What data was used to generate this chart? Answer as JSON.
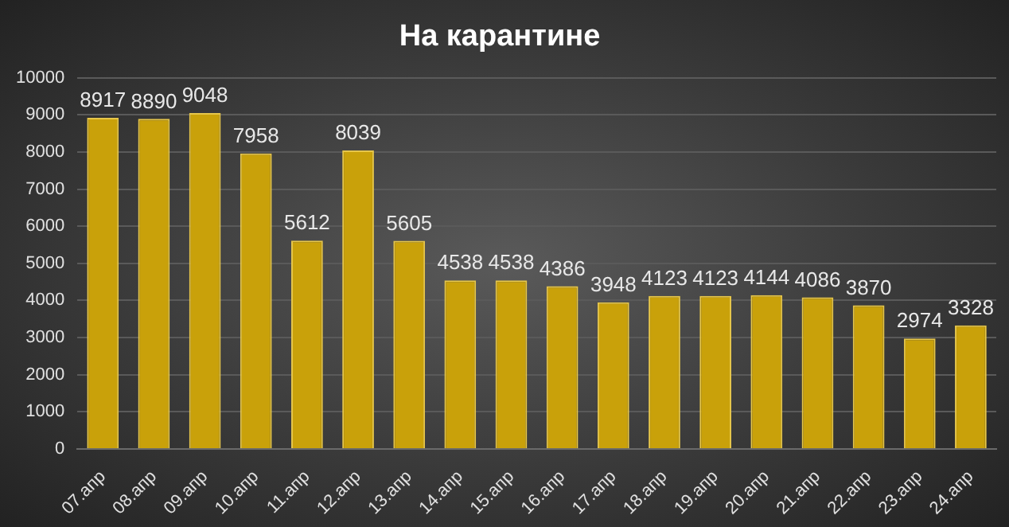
{
  "chart_data": {
    "type": "bar",
    "title": "На карантине",
    "categories": [
      "07.апр",
      "08.апр",
      "09.апр",
      "10.апр",
      "11.апр",
      "12.апр",
      "13.апр",
      "14.апр",
      "15.апр",
      "16.апр",
      "17.апр",
      "18.апр",
      "19.апр",
      "20.апр",
      "21.апр",
      "22.апр",
      "23.апр",
      "24.апр"
    ],
    "values": [
      8917,
      8890,
      9048,
      7958,
      5612,
      8039,
      5605,
      4538,
      4538,
      4386,
      3948,
      4123,
      4123,
      4144,
      4086,
      3870,
      2974,
      3328
    ],
    "color": "#c9a10a",
    "ylim": [
      0,
      10000
    ],
    "yticks": [
      0,
      1000,
      2000,
      3000,
      4000,
      5000,
      6000,
      7000,
      8000,
      9000,
      10000
    ],
    "grid": "y",
    "data_labels": true
  }
}
